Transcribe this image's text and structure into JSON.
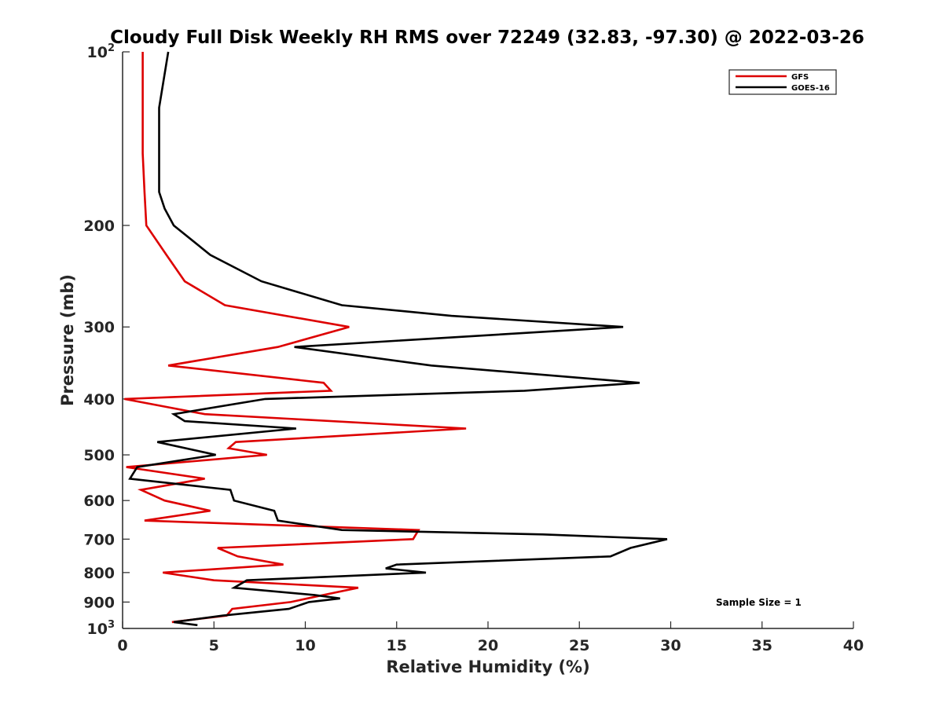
{
  "chart_data": {
    "type": "line",
    "title": "Cloudy Full Disk Weekly RH RMS over 72249 (32.83, -97.30) @ 2022-03-26",
    "xlabel": "Relative Humidity (%)",
    "ylabel": "Pressure (mb)",
    "xlim": [
      0,
      40
    ],
    "ylim": [
      100,
      1000
    ],
    "yscale": "log",
    "y_reversed": true,
    "x_ticks": [
      0,
      5,
      10,
      15,
      20,
      25,
      30,
      35,
      40
    ],
    "y_ticks": [
      {
        "value": 100,
        "label": "10",
        "sup": "2"
      },
      {
        "value": 200,
        "label": "200",
        "sup": ""
      },
      {
        "value": 300,
        "label": "300",
        "sup": ""
      },
      {
        "value": 400,
        "label": "400",
        "sup": ""
      },
      {
        "value": 500,
        "label": "500",
        "sup": ""
      },
      {
        "value": 600,
        "label": "600",
        "sup": ""
      },
      {
        "value": 700,
        "label": "700",
        "sup": ""
      },
      {
        "value": 800,
        "label": "800",
        "sup": ""
      },
      {
        "value": 900,
        "label": "900",
        "sup": ""
      },
      {
        "value": 1000,
        "label": "10",
        "sup": "3"
      }
    ],
    "grid": false,
    "legend_position": "top-right",
    "annotation": "Sample Size = 1",
    "series": [
      {
        "name": "GFS",
        "color": "#dd0000",
        "points": [
          [
            1.1,
            100
          ],
          [
            1.1,
            125
          ],
          [
            1.1,
            150
          ],
          [
            1.2,
            175
          ],
          [
            1.3,
            200
          ],
          [
            2.4,
            225
          ],
          [
            3.4,
            250
          ],
          [
            5.6,
            275
          ],
          [
            12.4,
            300
          ],
          [
            8.5,
            325
          ],
          [
            2.5,
            350
          ],
          [
            11.0,
            375
          ],
          [
            11.4,
            387
          ],
          [
            0.1,
            400
          ],
          [
            4.5,
            425
          ],
          [
            18.8,
            450
          ],
          [
            6.2,
            475
          ],
          [
            5.8,
            487
          ],
          [
            7.9,
            500
          ],
          [
            0.2,
            525
          ],
          [
            4.5,
            550
          ],
          [
            1.0,
            575
          ],
          [
            2.3,
            600
          ],
          [
            4.8,
            625
          ],
          [
            1.2,
            650
          ],
          [
            16.2,
            675
          ],
          [
            15.9,
            700
          ],
          [
            5.2,
            725
          ],
          [
            6.3,
            750
          ],
          [
            8.8,
            775
          ],
          [
            2.2,
            800
          ],
          [
            5.0,
            825
          ],
          [
            12.9,
            850
          ],
          [
            11.0,
            875
          ],
          [
            9.2,
            900
          ],
          [
            6.0,
            925
          ],
          [
            5.7,
            950
          ],
          [
            2.7,
            975
          ]
        ]
      },
      {
        "name": "GOES-16",
        "color": "#000000",
        "points": [
          [
            2.5,
            100
          ],
          [
            2.0,
            125
          ],
          [
            2.0,
            150
          ],
          [
            2.0,
            175
          ],
          [
            2.3,
            187
          ],
          [
            2.8,
            200
          ],
          [
            4.8,
            225
          ],
          [
            7.6,
            250
          ],
          [
            12.0,
            275
          ],
          [
            18.0,
            287
          ],
          [
            27.4,
            300
          ],
          [
            9.4,
            325
          ],
          [
            16.9,
            350
          ],
          [
            28.3,
            375
          ],
          [
            22.0,
            387
          ],
          [
            7.8,
            400
          ],
          [
            2.8,
            425
          ],
          [
            3.4,
            437
          ],
          [
            9.5,
            450
          ],
          [
            1.9,
            475
          ],
          [
            5.1,
            500
          ],
          [
            0.8,
            525
          ],
          [
            0.4,
            550
          ],
          [
            5.9,
            575
          ],
          [
            6.1,
            600
          ],
          [
            8.3,
            625
          ],
          [
            8.5,
            650
          ],
          [
            12.0,
            675
          ],
          [
            23.0,
            687
          ],
          [
            29.8,
            700
          ],
          [
            27.8,
            725
          ],
          [
            26.7,
            750
          ],
          [
            15.0,
            775
          ],
          [
            14.4,
            787
          ],
          [
            16.6,
            800
          ],
          [
            6.8,
            825
          ],
          [
            6.1,
            850
          ],
          [
            10.5,
            875
          ],
          [
            11.9,
            887
          ],
          [
            10.2,
            900
          ],
          [
            9.1,
            925
          ],
          [
            5.5,
            950
          ],
          [
            2.8,
            975
          ],
          [
            4.1,
            987
          ]
        ]
      }
    ]
  }
}
